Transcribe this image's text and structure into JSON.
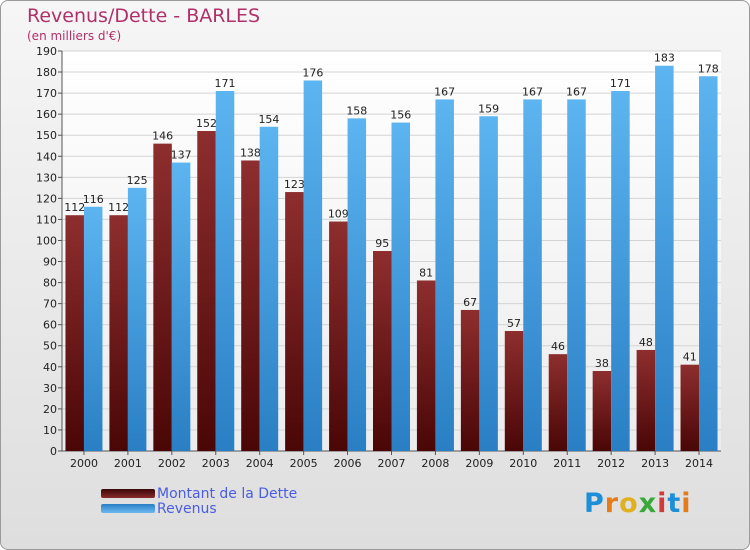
{
  "chart_data": {
    "type": "bar",
    "title": "Revenus/Dette - BARLES",
    "subtitle": "(en milliers d'€)",
    "categories": [
      "2000",
      "2001",
      "2002",
      "2003",
      "2004",
      "2005",
      "2006",
      "2007",
      "2008",
      "2009",
      "2010",
      "2011",
      "2012",
      "2013",
      "2014"
    ],
    "series": [
      {
        "name": "Montant de la Dette",
        "color": "#7a1a1a",
        "values": [
          112,
          112,
          146,
          152,
          138,
          123,
          109,
          95,
          81,
          67,
          57,
          46,
          38,
          48,
          41
        ]
      },
      {
        "name": "Revenus",
        "color": "#3fa0e6",
        "values": [
          116,
          125,
          137,
          171,
          154,
          176,
          158,
          156,
          167,
          159,
          167,
          167,
          171,
          183,
          178
        ]
      }
    ],
    "ylim": [
      0,
      190
    ],
    "ytick_step": 10,
    "grid": true,
    "legend": "bottom-left"
  },
  "logo": {
    "letters": [
      "P",
      "r",
      "o",
      "x",
      "i",
      "t",
      "i"
    ]
  }
}
